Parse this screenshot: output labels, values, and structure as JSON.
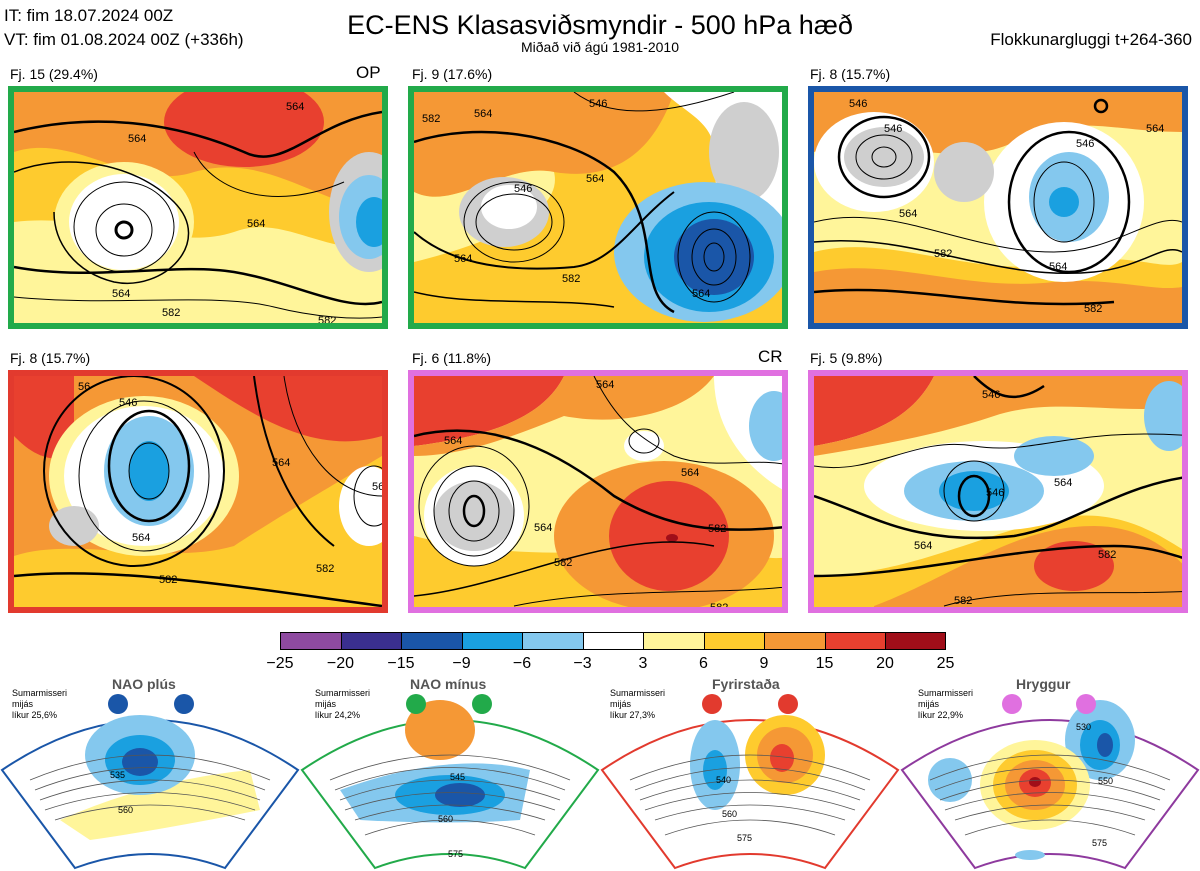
{
  "header": {
    "it": "IT: fim 18.07.2024 00Z",
    "vt": "VT: fim 01.08.2024 00Z  (+336h)",
    "title": "EC-ENS Klasasviðsmyndir - 500 hPa hæð",
    "subtitle": "Miðað við ágú 1981-2010",
    "window": "Flokkunargluggi t+264-360"
  },
  "panels": [
    {
      "label": "Fj. 15 (29.4%)",
      "tag": "OP",
      "border": "#22aa4a",
      "contours": [
        "564",
        "564",
        "564",
        "582",
        "582",
        "564"
      ]
    },
    {
      "label": "Fj. 9 (17.6%)",
      "tag": "",
      "border": "#22aa4a",
      "contours": [
        "546",
        "564",
        "564",
        "582",
        "564",
        "582",
        "582",
        "546",
        "564"
      ]
    },
    {
      "label": "Fj. 8 (15.7%)",
      "tag": "",
      "border": "#1a56a8",
      "contours": [
        "546",
        "546",
        "564",
        "582",
        "564",
        "582",
        "564",
        "546"
      ]
    },
    {
      "label": "Fj. 8 (15.7%)",
      "tag": "",
      "border": "#e23a2e",
      "contours": [
        "546",
        "564",
        "582",
        "564",
        "582",
        "564",
        "56"
      ]
    },
    {
      "label": "Fj. 6 (11.8%)",
      "tag": "CR",
      "border": "#e070e0",
      "contours": [
        "564",
        "564",
        "564",
        "582",
        "582",
        "582",
        "564"
      ]
    },
    {
      "label": "Fj. 5 (9.8%)",
      "tag": "",
      "border": "#e070e0",
      "contours": [
        "546",
        "564",
        "564",
        "582",
        "582",
        "546"
      ]
    }
  ],
  "colorbar": {
    "colors": [
      "#8e4aa0",
      "#3a2f8f",
      "#1a56a8",
      "#1aa0e0",
      "#84c8ee",
      "#ffffff",
      "#fff59a",
      "#fecb2e",
      "#f59835",
      "#e8402f",
      "#a00e19"
    ],
    "ticks": [
      "−25",
      "−20",
      "−15",
      "−9",
      "−6",
      "−3",
      "3",
      "6",
      "9",
      "15",
      "20",
      "25"
    ]
  },
  "regimes": [
    {
      "name": "NAO plús",
      "season": "Sumarmisseri",
      "mid": "mijás",
      "prob": "líkur 25,6%",
      "color": "#1a56a8",
      "contours": [
        "535",
        "560"
      ]
    },
    {
      "name": "NAO mínus",
      "season": "Sumarmisseri",
      "mid": "mijás",
      "prob": "líkur 24,2%",
      "color": "#22aa4a",
      "contours": [
        "545",
        "560",
        "575"
      ]
    },
    {
      "name": "Fyrirstaða",
      "season": "Sumarmisseri",
      "mid": "mijás",
      "prob": "líkur 27,3%",
      "color": "#e23a2e",
      "contours": [
        "540",
        "560",
        "575"
      ]
    },
    {
      "name": "Hryggur",
      "season": "Sumarmisseri",
      "mid": "mijás",
      "prob": "líkur 22,9%",
      "color": "#e070e0",
      "contours": [
        "530",
        "550",
        "575"
      ]
    }
  ]
}
